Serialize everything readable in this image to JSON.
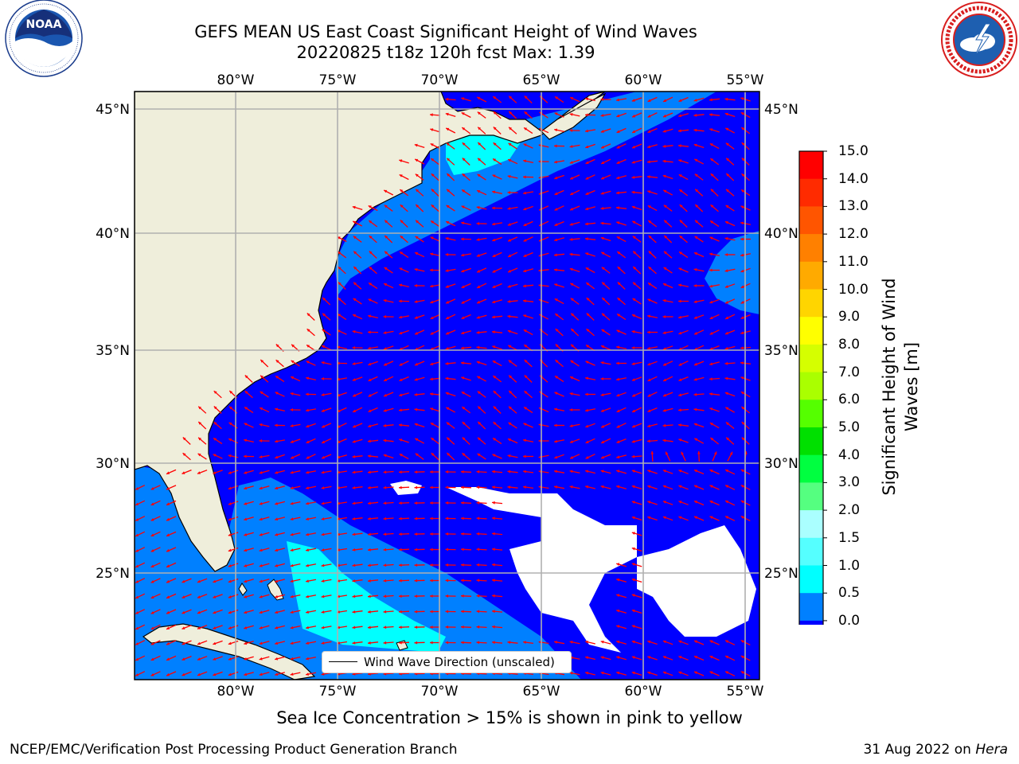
{
  "header": {
    "title_line1": "GEFS MEAN US East Coast Significant Height of Wind Waves",
    "title_line2": "20220825 t18z 120h fcst   Max: 1.39"
  },
  "logos": {
    "left": {
      "name": "NOAA",
      "ring_text": "NATIONAL OCEANIC AND ATMOSPHERIC ADMINISTRATION · U.S. DEPARTMENT OF COMMERCE"
    },
    "right": {
      "name": "National Weather Service",
      "ring_text": "NATIONAL WEATHER SERVICE"
    }
  },
  "map": {
    "lon_labels": [
      "80°W",
      "75°W",
      "70°W",
      "65°W",
      "60°W",
      "55°W"
    ],
    "lat_labels": [
      "45°N",
      "40°N",
      "35°N",
      "30°N",
      "25°N"
    ],
    "colors": {
      "land": "#efeedb",
      "ocean_low": "#0000ff",
      "ocean_mid": "#0080ff",
      "ocean_high": "#00ffff",
      "arrow": "#ff0000",
      "gridline": "#b0b0b0"
    }
  },
  "legend": {
    "label": "Wind Wave Direction (unscaled)"
  },
  "colorbar": {
    "title": "Significant Height of Wind Waves [m]",
    "ticks": [
      "15.0",
      "14.0",
      "13.0",
      "12.0",
      "11.0",
      "10.0",
      "9.0",
      "8.0",
      "7.0",
      "6.0",
      "5.0",
      "4.0",
      "3.0",
      "2.0",
      "1.5",
      "1.0",
      "0.5",
      "0.0"
    ],
    "colors": [
      "#ff0000",
      "#ff2b00",
      "#ff5500",
      "#ff8000",
      "#ffaa00",
      "#ffd500",
      "#ffff00",
      "#d5ff00",
      "#aaff00",
      "#55ff00",
      "#00e000",
      "#00ff40",
      "#55ff80",
      "#aaffff",
      "#55ffff",
      "#00ffff",
      "#0080ff",
      "#0000ff"
    ]
  },
  "notes": {
    "sea_ice": "Sea Ice Concentration > 15% is shown in pink to yellow"
  },
  "footer": {
    "left": "NCEP/EMC/Verification Post Processing Product Generation Branch",
    "date": "31 Aug 2022 on ",
    "machine": "Hera"
  }
}
